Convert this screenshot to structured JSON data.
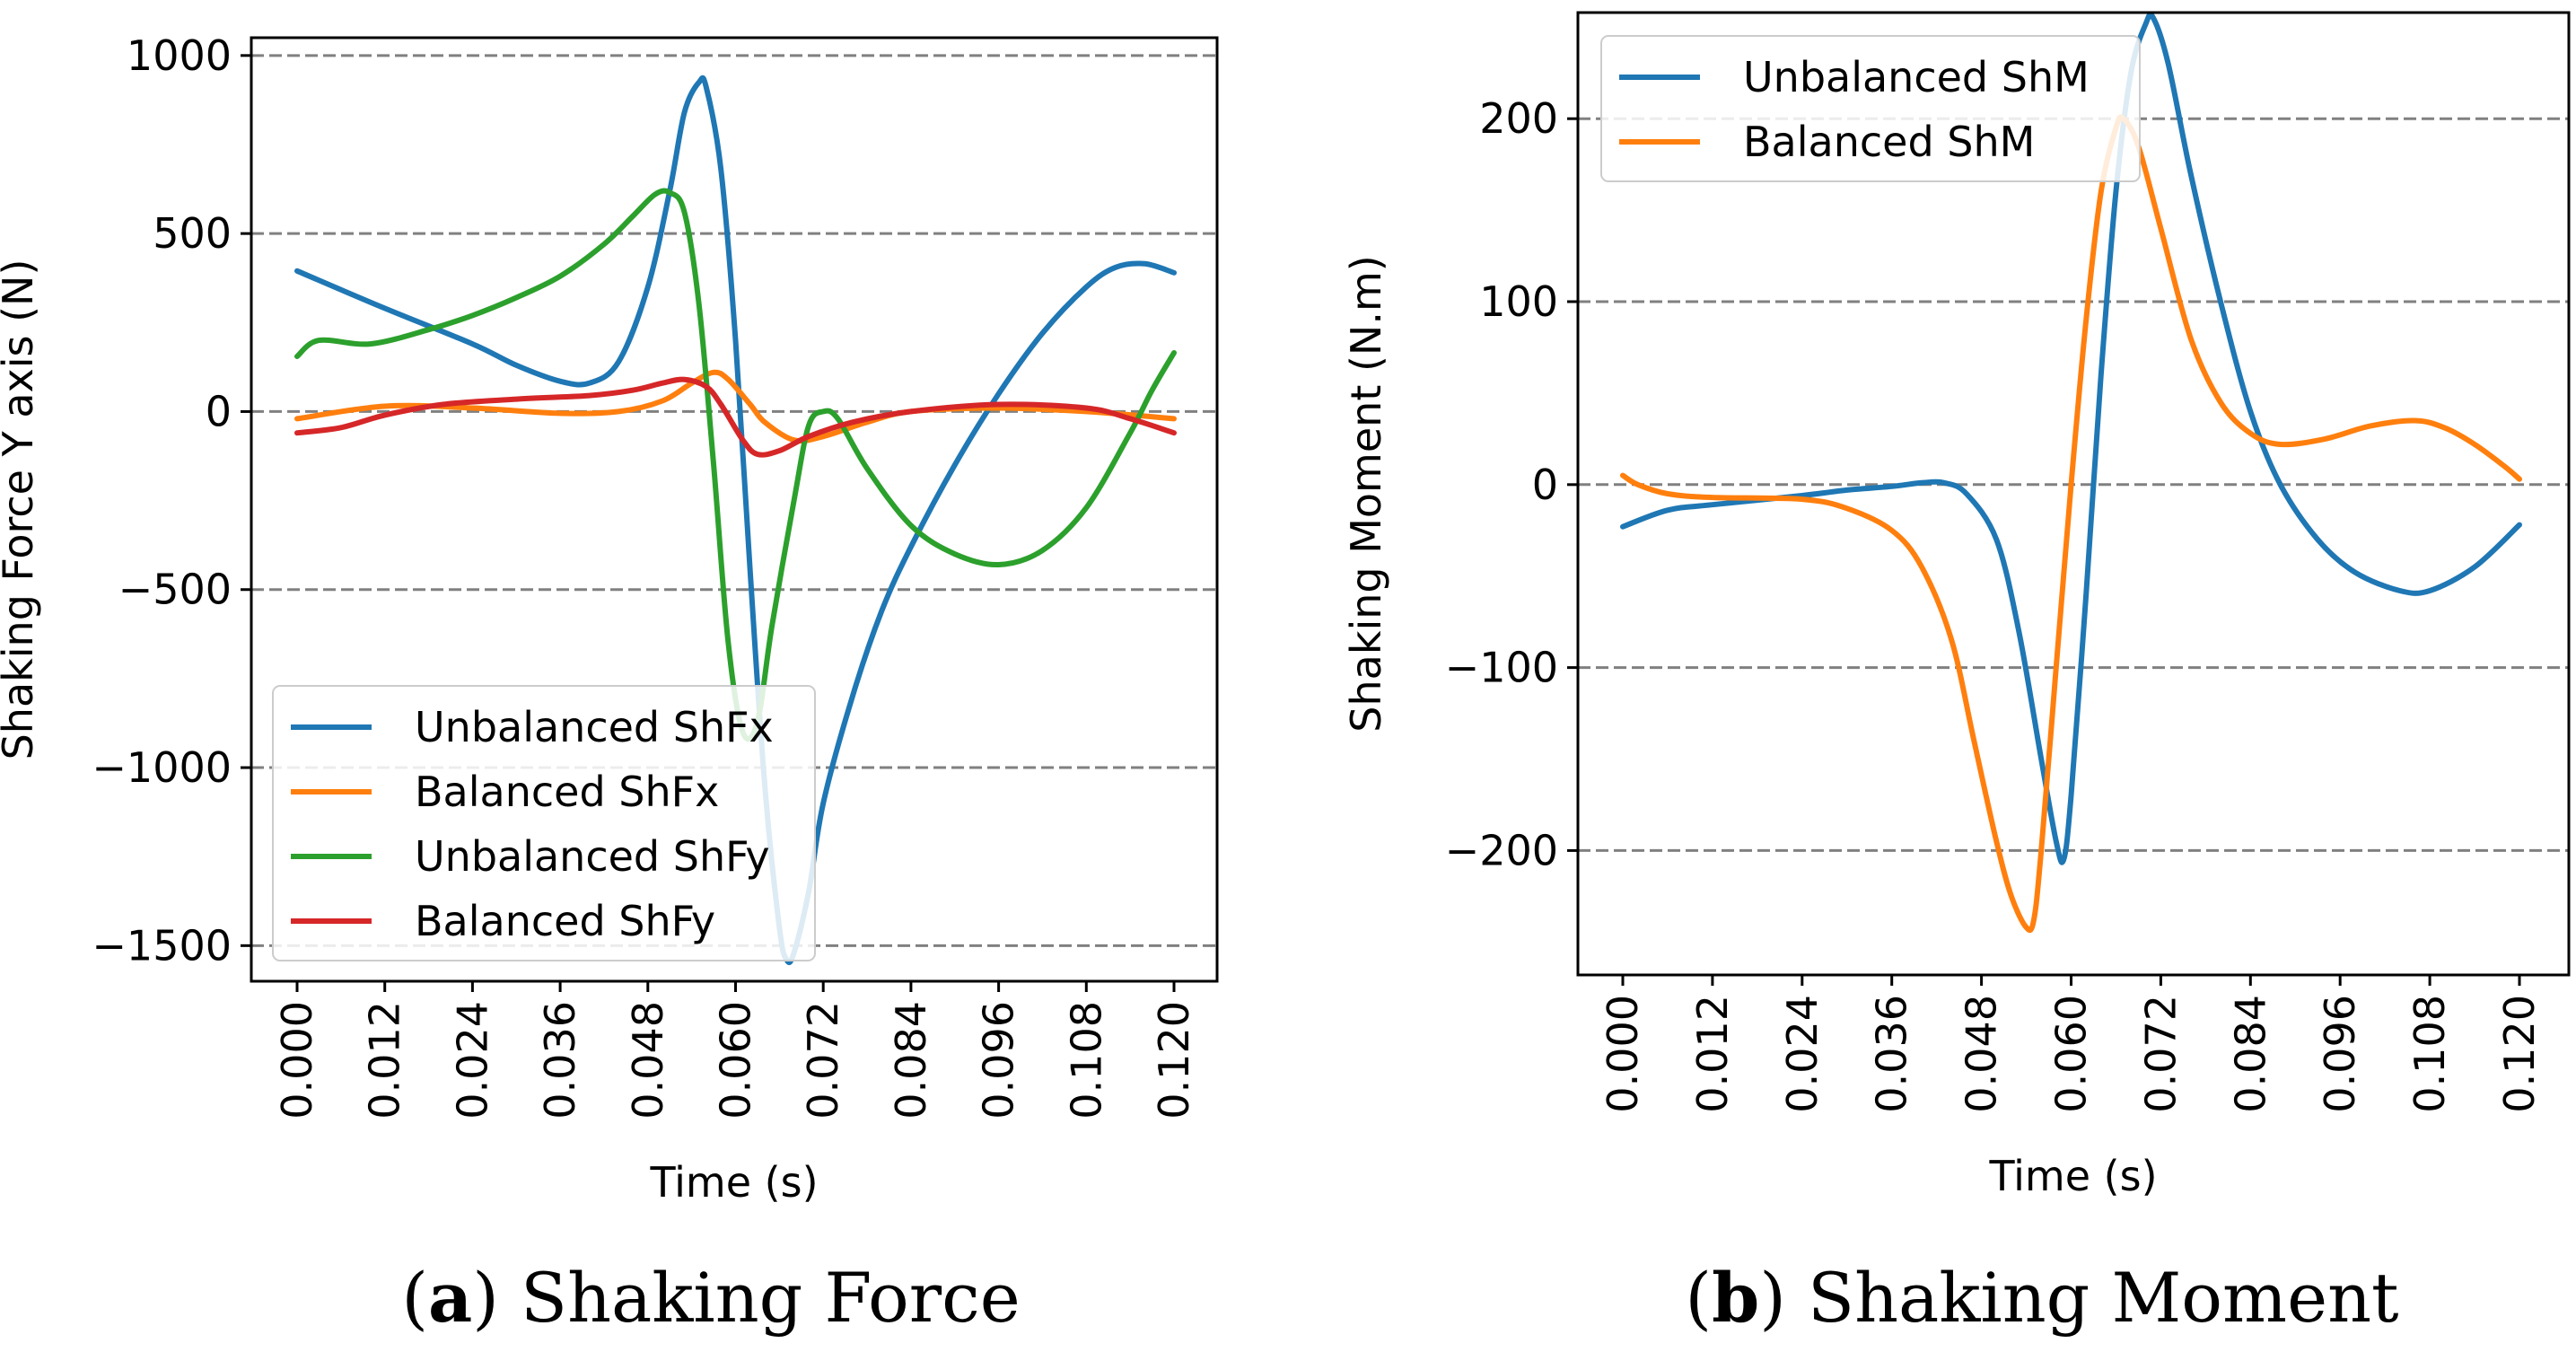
{
  "chart_data": [
    {
      "type": "line",
      "xlabel": "Time (s)",
      "ylabel": "Shaking Force Y axis (N)",
      "xlim": [
        0.0,
        0.12
      ],
      "ylim": [
        -1600,
        1050
      ],
      "x_ticks": [
        "0.000",
        "0.012",
        "0.024",
        "0.036",
        "0.048",
        "0.060",
        "0.072",
        "0.084",
        "0.096",
        "0.108",
        "0.120"
      ],
      "y_ticks": [
        1000,
        500,
        0,
        -500,
        -1000,
        -1500
      ],
      "y_tick_labels": [
        "1000",
        "500",
        "0",
        "−500",
        "−1000",
        "−1500"
      ],
      "grid": "horizontal dashed",
      "legend": "lower-left",
      "caption_tag": "a",
      "caption_text": "Shaking Force",
      "series": [
        {
          "name": "Unbalanced ShFx",
          "color": "#1f77b4",
          "points": [
            [
              0.0,
              395
            ],
            [
              0.012,
              290
            ],
            [
              0.024,
              190
            ],
            [
              0.03,
              130
            ],
            [
              0.036,
              85
            ],
            [
              0.04,
              80
            ],
            [
              0.044,
              140
            ],
            [
              0.048,
              350
            ],
            [
              0.051,
              620
            ],
            [
              0.053,
              840
            ],
            [
              0.055,
              925
            ],
            [
              0.056,
              910
            ],
            [
              0.058,
              680
            ],
            [
              0.06,
              200
            ],
            [
              0.062,
              -450
            ],
            [
              0.064,
              -1050
            ],
            [
              0.066,
              -1450
            ],
            [
              0.067,
              -1540
            ],
            [
              0.068,
              -1520
            ],
            [
              0.07,
              -1350
            ],
            [
              0.072,
              -1100
            ],
            [
              0.076,
              -800
            ],
            [
              0.08,
              -560
            ],
            [
              0.084,
              -380
            ],
            [
              0.09,
              -150
            ],
            [
              0.096,
              50
            ],
            [
              0.102,
              220
            ],
            [
              0.108,
              350
            ],
            [
              0.112,
              405
            ],
            [
              0.116,
              415
            ],
            [
              0.12,
              390
            ]
          ]
        },
        {
          "name": "Balanced ShFx",
          "color": "#ff7f0e",
          "points": [
            [
              0.0,
              -20
            ],
            [
              0.012,
              15
            ],
            [
              0.024,
              10
            ],
            [
              0.036,
              -5
            ],
            [
              0.044,
              0
            ],
            [
              0.05,
              30
            ],
            [
              0.054,
              80
            ],
            [
              0.057,
              110
            ],
            [
              0.059,
              90
            ],
            [
              0.062,
              20
            ],
            [
              0.064,
              -30
            ],
            [
              0.068,
              -80
            ],
            [
              0.072,
              -70
            ],
            [
              0.078,
              -30
            ],
            [
              0.084,
              0
            ],
            [
              0.096,
              10
            ],
            [
              0.108,
              0
            ],
            [
              0.12,
              -20
            ]
          ]
        },
        {
          "name": "Unbalanced ShFy",
          "color": "#2ca02c",
          "points": [
            [
              0.0,
              155
            ],
            [
              0.003,
              200
            ],
            [
              0.01,
              190
            ],
            [
              0.018,
              230
            ],
            [
              0.024,
              270
            ],
            [
              0.03,
              320
            ],
            [
              0.036,
              380
            ],
            [
              0.042,
              470
            ],
            [
              0.046,
              550
            ],
            [
              0.049,
              610
            ],
            [
              0.051,
              615
            ],
            [
              0.053,
              560
            ],
            [
              0.055,
              300
            ],
            [
              0.057,
              -150
            ],
            [
              0.059,
              -650
            ],
            [
              0.061,
              -900
            ],
            [
              0.063,
              -870
            ],
            [
              0.065,
              -600
            ],
            [
              0.068,
              -250
            ],
            [
              0.07,
              -40
            ],
            [
              0.072,
              0
            ],
            [
              0.074,
              -20
            ],
            [
              0.078,
              -160
            ],
            [
              0.084,
              -320
            ],
            [
              0.09,
              -400
            ],
            [
              0.096,
              -430
            ],
            [
              0.102,
              -390
            ],
            [
              0.108,
              -270
            ],
            [
              0.114,
              -60
            ],
            [
              0.117,
              60
            ],
            [
              0.12,
              165
            ]
          ]
        },
        {
          "name": "Balanced ShFy",
          "color": "#d62728",
          "points": [
            [
              0.0,
              -60
            ],
            [
              0.006,
              -45
            ],
            [
              0.012,
              -10
            ],
            [
              0.02,
              20
            ],
            [
              0.03,
              35
            ],
            [
              0.04,
              45
            ],
            [
              0.046,
              60
            ],
            [
              0.05,
              80
            ],
            [
              0.053,
              90
            ],
            [
              0.056,
              70
            ],
            [
              0.058,
              20
            ],
            [
              0.061,
              -80
            ],
            [
              0.063,
              -120
            ],
            [
              0.066,
              -110
            ],
            [
              0.07,
              -70
            ],
            [
              0.076,
              -30
            ],
            [
              0.084,
              0
            ],
            [
              0.096,
              20
            ],
            [
              0.108,
              10
            ],
            [
              0.114,
              -20
            ],
            [
              0.12,
              -60
            ]
          ]
        }
      ]
    },
    {
      "type": "line",
      "xlabel": "Time (s)",
      "ylabel": "Shaking Moment (N.m)",
      "xlim": [
        0.0,
        0.12
      ],
      "ylim": [
        -268,
        258
      ],
      "x_ticks": [
        "0.000",
        "0.012",
        "0.024",
        "0.036",
        "0.048",
        "0.060",
        "0.072",
        "0.084",
        "0.096",
        "0.108",
        "0.120"
      ],
      "y_ticks": [
        200,
        100,
        0,
        -100,
        -200
      ],
      "y_tick_labels": [
        "200",
        "100",
        "0",
        "−100",
        "−200"
      ],
      "grid": "horizontal dashed",
      "legend": "upper-left",
      "caption_tag": "b",
      "caption_text": "Shaking Moment",
      "series": [
        {
          "name": "Unbalanced ShM",
          "color": "#1f77b4",
          "points": [
            [
              0.0,
              -23
            ],
            [
              0.006,
              -14
            ],
            [
              0.012,
              -11
            ],
            [
              0.024,
              -6
            ],
            [
              0.03,
              -3
            ],
            [
              0.036,
              -1
            ],
            [
              0.04,
              1
            ],
            [
              0.043,
              1
            ],
            [
              0.046,
              -5
            ],
            [
              0.05,
              -30
            ],
            [
              0.053,
              -80
            ],
            [
              0.056,
              -150
            ],
            [
              0.058,
              -195
            ],
            [
              0.059,
              -205
            ],
            [
              0.06,
              -170
            ],
            [
              0.062,
              -60
            ],
            [
              0.064,
              60
            ],
            [
              0.066,
              160
            ],
            [
              0.068,
              225
            ],
            [
              0.07,
              252
            ],
            [
              0.071,
              255
            ],
            [
              0.073,
              230
            ],
            [
              0.076,
              170
            ],
            [
              0.08,
              100
            ],
            [
              0.084,
              40
            ],
            [
              0.088,
              0
            ],
            [
              0.093,
              -30
            ],
            [
              0.098,
              -48
            ],
            [
              0.104,
              -58
            ],
            [
              0.108,
              -58
            ],
            [
              0.114,
              -45
            ],
            [
              0.12,
              -22
            ]
          ]
        },
        {
          "name": "Balanced ShM",
          "color": "#ff7f0e",
          "points": [
            [
              0.0,
              5
            ],
            [
              0.002,
              0
            ],
            [
              0.006,
              -5
            ],
            [
              0.012,
              -7
            ],
            [
              0.024,
              -8
            ],
            [
              0.03,
              -13
            ],
            [
              0.036,
              -25
            ],
            [
              0.04,
              -45
            ],
            [
              0.044,
              -85
            ],
            [
              0.047,
              -140
            ],
            [
              0.05,
              -195
            ],
            [
              0.052,
              -225
            ],
            [
              0.054,
              -242
            ],
            [
              0.055,
              -238
            ],
            [
              0.056,
              -200
            ],
            [
              0.058,
              -100
            ],
            [
              0.06,
              0
            ],
            [
              0.062,
              90
            ],
            [
              0.064,
              160
            ],
            [
              0.066,
              195
            ],
            [
              0.067,
              200
            ],
            [
              0.069,
              185
            ],
            [
              0.072,
              140
            ],
            [
              0.076,
              80
            ],
            [
              0.08,
              45
            ],
            [
              0.084,
              28
            ],
            [
              0.088,
              22
            ],
            [
              0.094,
              25
            ],
            [
              0.1,
              32
            ],
            [
              0.106,
              35
            ],
            [
              0.11,
              31
            ],
            [
              0.114,
              22
            ],
            [
              0.118,
              10
            ],
            [
              0.12,
              3
            ]
          ]
        }
      ]
    }
  ]
}
